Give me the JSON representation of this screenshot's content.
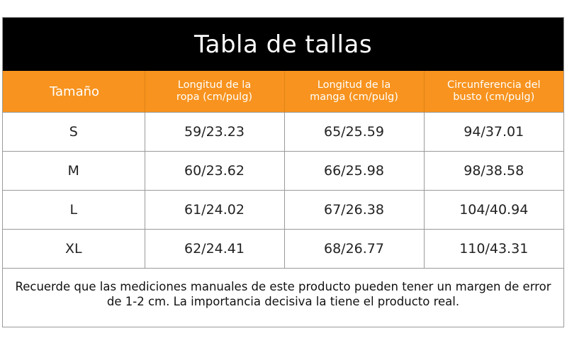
{
  "title": "Tabla de tallas",
  "headers": {
    "size": "Tamaño",
    "length_l1": "Longitud de la",
    "length_l2": "ropa (cm/pulg)",
    "sleeve_l1": "Longitud de la",
    "sleeve_l2": "manga (cm/pulg)",
    "bust_l1": "Circunferencia del",
    "bust_l2": "busto (cm/pulg)"
  },
  "rows": [
    {
      "size": "S",
      "length": "59/23.23",
      "sleeve": "65/25.59",
      "bust": "94/37.01"
    },
    {
      "size": "M",
      "length": "60/23.62",
      "sleeve": "66/25.98",
      "bust": "98/38.58"
    },
    {
      "size": "L",
      "length": "61/24.02",
      "sleeve": "67/26.38",
      "bust": "104/40.94"
    },
    {
      "size": "XL",
      "length": "62/24.41",
      "sleeve": "68/26.77",
      "bust": "110/43.31"
    }
  ],
  "note": "Recuerde que las mediciones manuales de este producto pueden tener un margen de error de 1-2 cm. La importancia decisiva la tiene el producto real.",
  "colors": {
    "header_bg": "#f7931e",
    "title_bg": "#000000"
  }
}
